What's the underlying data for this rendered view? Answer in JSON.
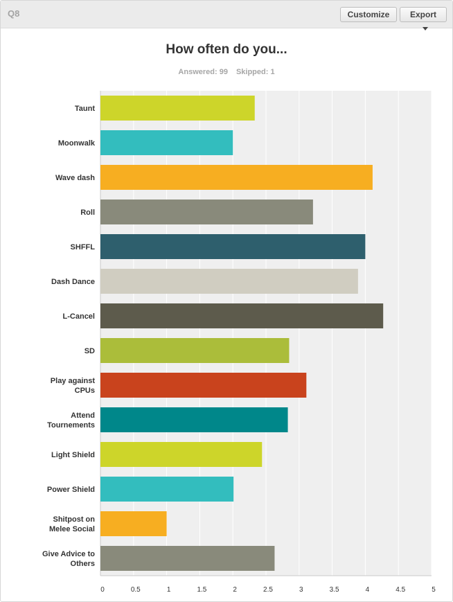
{
  "question": {
    "number": "Q8",
    "title": "How often do you...",
    "answered_label": "Answered: 99",
    "skipped_label": "Skipped: 1"
  },
  "toolbar": {
    "customize_label": "Customize",
    "export_label": "Export",
    "export_icon": "caret-down-icon"
  },
  "chart_data": {
    "type": "bar",
    "orientation": "horizontal",
    "title": "How often do you...",
    "categories": [
      [
        "Taunt"
      ],
      [
        "Moonwalk"
      ],
      [
        "Wave dash"
      ],
      [
        "Roll"
      ],
      [
        "SHFFL"
      ],
      [
        "Dash Dance"
      ],
      [
        "L-Cancel"
      ],
      [
        "SD"
      ],
      [
        "Play against",
        "CPUs"
      ],
      [
        "Attend",
        "Tournements"
      ],
      [
        "Light Shield"
      ],
      [
        "Power Shield"
      ],
      [
        "Shitpost on",
        "Melee Social"
      ],
      [
        "Give Advice to",
        "Others"
      ]
    ],
    "values": [
      2.33,
      2.0,
      4.11,
      3.21,
      4.0,
      3.89,
      4.27,
      2.85,
      3.11,
      2.83,
      2.44,
      2.01,
      1.0,
      2.63
    ],
    "colors": [
      "#cdd52a",
      "#33bdbe",
      "#f7ae21",
      "#898a7b",
      "#2e5f6d",
      "#d0cdc1",
      "#5d5b4c",
      "#abbd3a",
      "#c9431d",
      "#00878a",
      "#cdd52a",
      "#33bdbe",
      "#f7ae21",
      "#898a7b"
    ],
    "xlim": [
      0,
      5
    ],
    "xticks": [
      "0",
      "0.5",
      "1",
      "1.5",
      "2",
      "2.5",
      "3",
      "3.5",
      "4",
      "4.5",
      "5"
    ],
    "plot_background": "#efefef",
    "gridline_color": "#ffffff",
    "xlabel": "",
    "ylabel": ""
  }
}
